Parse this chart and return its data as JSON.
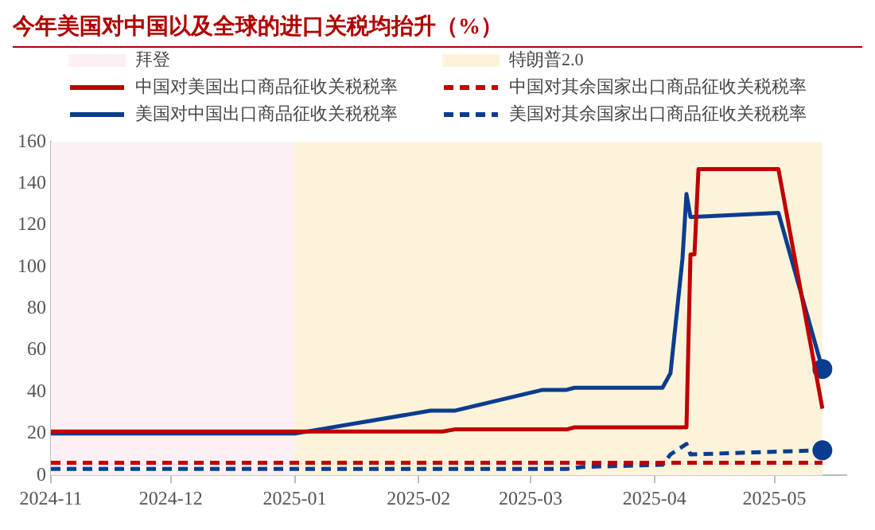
{
  "chart_data": {
    "type": "line",
    "title": "今年美国对中国以及全球的进口关税均抬升（%）",
    "xlim": [
      "2024-11-01",
      "2025-05-19"
    ],
    "xticks": [
      "2024-11",
      "2024-12",
      "2025-01",
      "2025-02",
      "2025-03",
      "2025-04",
      "2025-05"
    ],
    "ylim": [
      0,
      160
    ],
    "yticks": [
      0,
      20,
      40,
      60,
      80,
      100,
      120,
      140,
      160
    ],
    "grid": false,
    "legend": "top",
    "line_style": "solid",
    "marker": "none",
    "bands": [
      {
        "axis": "x",
        "from": "2024-11-01",
        "to": "2025-01-01",
        "label": "拜登",
        "color": "#fdf0f5"
      },
      {
        "axis": "x",
        "from": "2025-01-01",
        "to": "2025-05-13",
        "label": "特朗普2.0",
        "color": "#fdf3da"
      }
    ],
    "series": [
      {
        "name": "中国对美国出口商品征收关税税率",
        "color": "#c00000",
        "x": [
          "2024-11-01",
          "2025-02-07",
          "2025-02-10",
          "2025-03-10",
          "2025-03-12",
          "2025-04-09",
          "2025-04-10",
          "2025-04-11",
          "2025-04-12",
          "2025-05-02",
          "2025-05-13"
        ],
        "values": [
          21,
          21,
          22,
          22,
          23,
          23,
          106,
          106,
          147,
          147,
          32
        ]
      },
      {
        "name": "中国对其余国家出口商品征收关税税率",
        "color": "#c00000",
        "line_style": "dashed",
        "x": [
          "2024-11-01",
          "2025-05-13"
        ],
        "values": [
          6,
          6
        ]
      },
      {
        "name": "美国对中国出口商品征收关税税率",
        "color": "#0a3d8f",
        "x": [
          "2024-11-01",
          "2025-01-01",
          "2025-02-04",
          "2025-02-10",
          "2025-03-04",
          "2025-03-10",
          "2025-03-12",
          "2025-04-03",
          "2025-04-05",
          "2025-04-08",
          "2025-04-09",
          "2025-04-10",
          "2025-05-02",
          "2025-05-13"
        ],
        "values": [
          20,
          20,
          31,
          31,
          41,
          41,
          42,
          42,
          49,
          104,
          135,
          124,
          126,
          51
        ]
      },
      {
        "name": "美国对其余国家出口商品征收关税税率",
        "color": "#0a3d8f",
        "line_style": "dashed",
        "x": [
          "2024-11-01",
          "2025-03-10",
          "2025-03-14",
          "2025-04-03",
          "2025-04-05",
          "2025-04-09",
          "2025-04-10",
          "2025-05-13"
        ],
        "values": [
          3,
          3,
          4,
          5,
          10,
          15,
          10,
          12
        ]
      },
      {
        "type": "scatter",
        "color": "#0a3d8f",
        "marker": "circle",
        "x": [
          "2025-05-13",
          "2025-05-13"
        ],
        "values": [
          51,
          12
        ]
      }
    ]
  }
}
